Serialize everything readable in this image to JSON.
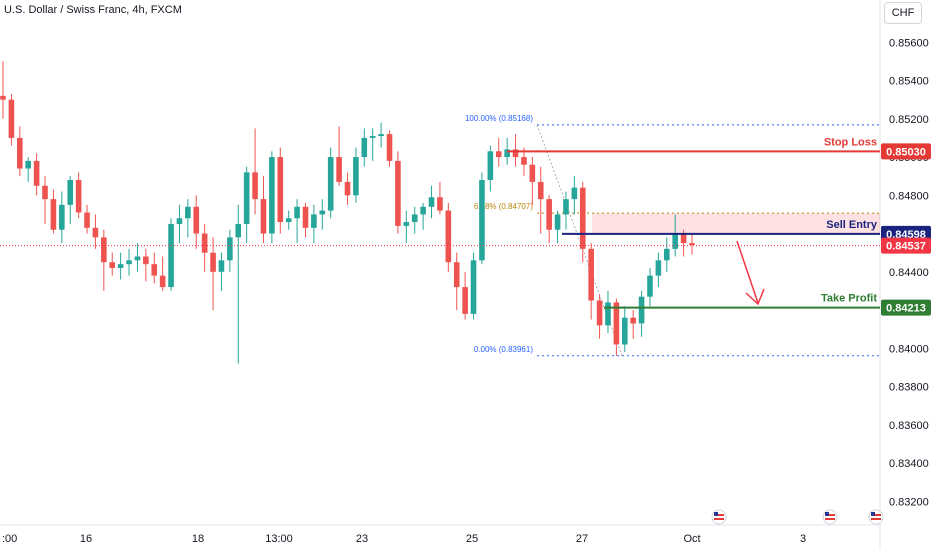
{
  "header": {
    "title": "U.S. Dollar / Swiss Franc, 4h, FXCM",
    "currency": "CHF"
  },
  "colors": {
    "up": "#26a69a",
    "down": "#ef5350",
    "stop": "#e53935",
    "entry": "#1a237e",
    "tp": "#2e7d32",
    "current": "#f23645",
    "fib": "#2962ff",
    "fib618": "#b8860b"
  },
  "chart_data": {
    "type": "candlestick",
    "ylim": [
      0.831,
      0.8575
    ],
    "y_ticks": [
      "0.85600",
      "0.85400",
      "0.85200",
      "0.85000",
      "0.84800",
      "0.84600",
      "0.84400",
      "0.84200",
      "0.84000",
      "0.83800",
      "0.83600",
      "0.83400",
      "0.83200"
    ],
    "x_ticks": [
      ":00",
      "16",
      "18",
      "13:00",
      "23",
      "25",
      "27",
      "Oct",
      "3"
    ],
    "candles": [
      [
        0.8532,
        0.855,
        0.852,
        0.853
      ],
      [
        0.853,
        0.8533,
        0.8506,
        0.851
      ],
      [
        0.851,
        0.8516,
        0.849,
        0.8494
      ],
      [
        0.8494,
        0.85,
        0.8487,
        0.8498
      ],
      [
        0.8498,
        0.8502,
        0.848,
        0.8485
      ],
      [
        0.8485,
        0.849,
        0.8465,
        0.8478
      ],
      [
        0.8478,
        0.8483,
        0.846,
        0.8462
      ],
      [
        0.8462,
        0.8482,
        0.8455,
        0.8475
      ],
      [
        0.8475,
        0.849,
        0.8465,
        0.8488
      ],
      [
        0.8488,
        0.8492,
        0.8468,
        0.8471
      ],
      [
        0.8471,
        0.8475,
        0.846,
        0.8463
      ],
      [
        0.8463,
        0.847,
        0.8452,
        0.8458
      ],
      [
        0.8458,
        0.8462,
        0.843,
        0.8445
      ],
      [
        0.8445,
        0.845,
        0.8438,
        0.8442
      ],
      [
        0.8442,
        0.845,
        0.8436,
        0.8444
      ],
      [
        0.8444,
        0.8452,
        0.8438,
        0.8446
      ],
      [
        0.8446,
        0.8455,
        0.844,
        0.8448
      ],
      [
        0.8448,
        0.8452,
        0.8435,
        0.8444
      ],
      [
        0.8444,
        0.845,
        0.8434,
        0.8438
      ],
      [
        0.8438,
        0.8448,
        0.843,
        0.8432
      ],
      [
        0.8432,
        0.8468,
        0.843,
        0.8465
      ],
      [
        0.8465,
        0.8475,
        0.8455,
        0.8468
      ],
      [
        0.8468,
        0.8478,
        0.8458,
        0.8474
      ],
      [
        0.8474,
        0.848,
        0.8452,
        0.846
      ],
      [
        0.846,
        0.8465,
        0.844,
        0.845
      ],
      [
        0.845,
        0.8458,
        0.842,
        0.844
      ],
      [
        0.844,
        0.845,
        0.843,
        0.8446
      ],
      [
        0.8446,
        0.8462,
        0.844,
        0.8458
      ],
      [
        0.8458,
        0.8475,
        0.8392,
        0.8465
      ],
      [
        0.8465,
        0.8495,
        0.8455,
        0.8492
      ],
      [
        0.8492,
        0.8515,
        0.847,
        0.8478
      ],
      [
        0.8478,
        0.849,
        0.8455,
        0.846
      ],
      [
        0.846,
        0.8503,
        0.8455,
        0.85
      ],
      [
        0.85,
        0.8505,
        0.846,
        0.8466
      ],
      [
        0.8466,
        0.8472,
        0.8462,
        0.8468
      ],
      [
        0.8468,
        0.8478,
        0.8455,
        0.8474
      ],
      [
        0.8474,
        0.8476,
        0.8458,
        0.8463
      ],
      [
        0.8463,
        0.8475,
        0.8455,
        0.847
      ],
      [
        0.847,
        0.8478,
        0.8462,
        0.8472
      ],
      [
        0.8472,
        0.8505,
        0.8468,
        0.85
      ],
      [
        0.85,
        0.8516,
        0.8485,
        0.8487
      ],
      [
        0.8487,
        0.8492,
        0.8475,
        0.848
      ],
      [
        0.848,
        0.8505,
        0.8476,
        0.85
      ],
      [
        0.85,
        0.8515,
        0.8495,
        0.851
      ],
      [
        0.851,
        0.8515,
        0.8498,
        0.8511
      ],
      [
        0.8511,
        0.8518,
        0.8505,
        0.8512
      ],
      [
        0.8512,
        0.8514,
        0.8495,
        0.8498
      ],
      [
        0.8498,
        0.8503,
        0.846,
        0.8464
      ],
      [
        0.8464,
        0.8472,
        0.8455,
        0.8466
      ],
      [
        0.8466,
        0.8474,
        0.846,
        0.847
      ],
      [
        0.847,
        0.8476,
        0.8462,
        0.8474
      ],
      [
        0.8474,
        0.8485,
        0.8468,
        0.8479
      ],
      [
        0.8479,
        0.8487,
        0.847,
        0.8472
      ],
      [
        0.8472,
        0.8476,
        0.844,
        0.8445
      ],
      [
        0.8445,
        0.845,
        0.842,
        0.8432
      ],
      [
        0.8432,
        0.844,
        0.8415,
        0.8418
      ],
      [
        0.8418,
        0.845,
        0.8415,
        0.8446
      ],
      [
        0.8446,
        0.8492,
        0.8444,
        0.8488
      ],
      [
        0.8488,
        0.8506,
        0.8482,
        0.8503
      ],
      [
        0.8503,
        0.851,
        0.8495,
        0.85
      ],
      [
        0.85,
        0.851,
        0.8496,
        0.8504
      ],
      [
        0.8504,
        0.8512,
        0.8495,
        0.85
      ],
      [
        0.85,
        0.8505,
        0.849,
        0.8496
      ],
      [
        0.8496,
        0.85,
        0.8475,
        0.8487
      ],
      [
        0.8487,
        0.8495,
        0.846,
        0.8478
      ],
      [
        0.8478,
        0.848,
        0.8455,
        0.8462
      ],
      [
        0.8462,
        0.8472,
        0.8455,
        0.847
      ],
      [
        0.847,
        0.8482,
        0.8462,
        0.8478
      ],
      [
        0.8478,
        0.849,
        0.847,
        0.8484
      ],
      [
        0.8484,
        0.8487,
        0.8445,
        0.8452
      ],
      [
        0.8452,
        0.8455,
        0.8415,
        0.8425
      ],
      [
        0.8425,
        0.8428,
        0.8405,
        0.8412
      ],
      [
        0.8412,
        0.843,
        0.8408,
        0.8424
      ],
      [
        0.8424,
        0.8426,
        0.8396,
        0.8402
      ],
      [
        0.8402,
        0.8422,
        0.8398,
        0.8416
      ],
      [
        0.8416,
        0.842,
        0.8405,
        0.8413
      ],
      [
        0.8413,
        0.843,
        0.8406,
        0.8427
      ],
      [
        0.8427,
        0.8442,
        0.8422,
        0.8438
      ],
      [
        0.8438,
        0.845,
        0.8432,
        0.8446
      ],
      [
        0.8446,
        0.8458,
        0.844,
        0.8452
      ],
      [
        0.8452,
        0.847,
        0.8448,
        0.846
      ],
      [
        0.846,
        0.8462,
        0.8448,
        0.8455
      ],
      [
        0.8455,
        0.846,
        0.8449,
        0.8454
      ]
    ],
    "levels": [
      {
        "name": "Stop Loss",
        "price": 0.8503,
        "label": "0.85030"
      },
      {
        "name": "Sell Entry",
        "price": 0.84598,
        "label": "0.84598"
      },
      {
        "name": "Take Profit",
        "price": 0.84213,
        "label": "0.84213"
      }
    ],
    "current_price": {
      "price": 0.84537,
      "label": "0.84537"
    },
    "fib": [
      {
        "label": "100.00% (0.85168)",
        "price": 0.85168
      },
      {
        "label": "61.8% (0.84707)",
        "price": 0.84707
      },
      {
        "label": "0.00% (0.83961)",
        "price": 0.83961
      }
    ]
  }
}
